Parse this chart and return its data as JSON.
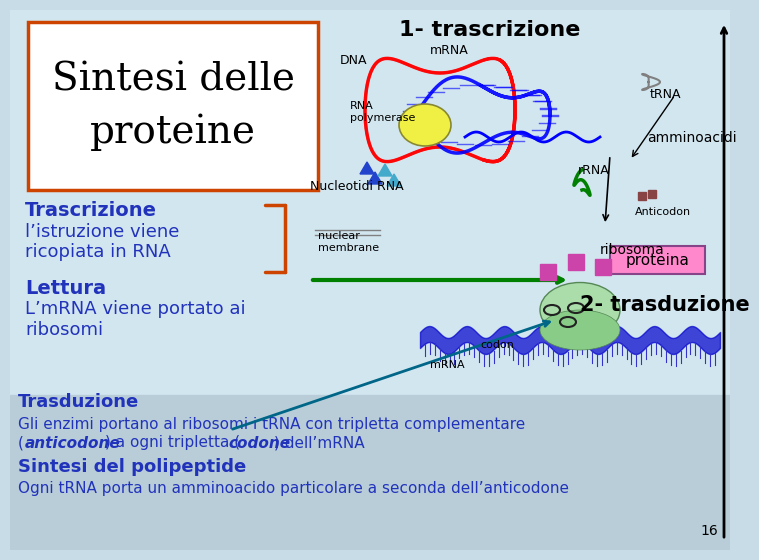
{
  "bg_color": "#c8dce8",
  "bg_right_color": "#d0e4f0",
  "title_box_color": "#cc4400",
  "title_text": "Sintesi delle\nproteine",
  "title_fontsize": 28,
  "title_color": "#000000",
  "label_1_trascrizione": "1- trascrizione",
  "label_1_fontsize": 16,
  "label_amminoacidi_text": "amminoacidi",
  "label_ribosoma_text": "ribosoma",
  "proteina_box_text": "proteina",
  "proteina_box_color": "#ff88cc",
  "trasduzione_label": "2- trasduzione",
  "trasduzione_fontsize": 15,
  "left_texts": [
    {
      "text": "Trascrizione",
      "bold": true,
      "fontsize": 13,
      "color": "#2233bb"
    },
    {
      "text": "l’istruzione viene",
      "bold": false,
      "fontsize": 12,
      "color": "#2233bb"
    },
    {
      "text": "ricopiata in RNA",
      "bold": false,
      "fontsize": 12,
      "color": "#2233bb"
    },
    {
      "text": "",
      "bold": false,
      "fontsize": 12,
      "color": "#2233bb"
    },
    {
      "text": "Lettura",
      "bold": true,
      "fontsize": 13,
      "color": "#2233bb"
    },
    {
      "text": "L’mRNA viene portato ai",
      "bold": false,
      "fontsize": 12,
      "color": "#2233bb"
    },
    {
      "text": "ribosomi",
      "bold": false,
      "fontsize": 12,
      "color": "#2233bb"
    }
  ],
  "bottom_texts": [
    {
      "text": "Trasduzione",
      "bold": true,
      "fontsize": 12,
      "color": "#2233bb"
    },
    {
      "text": "Gli enzimi portano al ribosomi i tRNA con tripletta complementare",
      "bold": false,
      "fontsize": 11,
      "color": "#2233bb"
    },
    {
      "text": "(anticodone) a ogni tripletta (codone) dell’mRNA",
      "bold": false,
      "italic": true,
      "fontsize": 11,
      "color": "#2233bb"
    },
    {
      "text": "Sintesi del polipeptide",
      "bold": true,
      "fontsize": 12,
      "color": "#2233bb"
    },
    {
      "text": "Ogni tRNA porta un amminoacido particolare a seconda dell’anticodone",
      "bold": false,
      "fontsize": 11,
      "color": "#2233bb"
    }
  ],
  "page_num": "16"
}
